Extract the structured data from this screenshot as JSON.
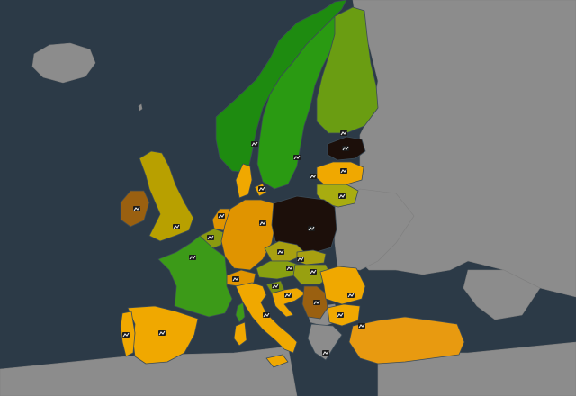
{
  "map": {
    "colors": {
      "sea": "#2c3a47",
      "non_data_land": "#8c8c8c",
      "border": "#3b4b57"
    },
    "countries": [
      {
        "name": "norway",
        "color": "#1e8b10"
      },
      {
        "name": "sweden",
        "color": "#2a9a12"
      },
      {
        "name": "finland",
        "color": "#6a9d12"
      },
      {
        "name": "estonia",
        "color": "#1c0f0a"
      },
      {
        "name": "latvia",
        "color": "#f0a800"
      },
      {
        "name": "lithuania",
        "color": "#a8ac10"
      },
      {
        "name": "denmark",
        "color": "#f0a800"
      },
      {
        "name": "ireland",
        "color": "#9a6010"
      },
      {
        "name": "united-kingdom",
        "color": "#b8a000"
      },
      {
        "name": "netherlands",
        "color": "#e09400"
      },
      {
        "name": "belgium",
        "color": "#8a9a10"
      },
      {
        "name": "germany",
        "color": "#e09400"
      },
      {
        "name": "poland",
        "color": "#1c0f0a"
      },
      {
        "name": "czechia",
        "color": "#a8a010"
      },
      {
        "name": "slovakia",
        "color": "#a8a010"
      },
      {
        "name": "austria",
        "color": "#88a010"
      },
      {
        "name": "hungary",
        "color": "#98a010"
      },
      {
        "name": "switzerland",
        "color": "#e09400"
      },
      {
        "name": "france",
        "color": "#3c9a18"
      },
      {
        "name": "corsica",
        "color": "#3c9a18"
      },
      {
        "name": "spain",
        "color": "#f0a800"
      },
      {
        "name": "portugal",
        "color": "#f0a800"
      },
      {
        "name": "italy",
        "color": "#f0a800"
      },
      {
        "name": "sicily",
        "color": "#f0a800"
      },
      {
        "name": "sardinia",
        "color": "#f0a800"
      },
      {
        "name": "slovenia",
        "color": "#7a9010"
      },
      {
        "name": "croatia",
        "color": "#f0a800"
      },
      {
        "name": "serbia",
        "color": "#9a6010"
      },
      {
        "name": "romania",
        "color": "#f0a800"
      },
      {
        "name": "bulgaria",
        "color": "#f0a800"
      },
      {
        "name": "greece",
        "color": "#8c8c8c"
      },
      {
        "name": "turkey",
        "color": "#e89a10"
      }
    ],
    "markers": [
      {
        "id": "oslo"
      },
      {
        "id": "stockholm"
      },
      {
        "id": "helsinki"
      },
      {
        "id": "tallinn"
      },
      {
        "id": "riga"
      },
      {
        "id": "vilnius"
      },
      {
        "id": "copenhagen"
      },
      {
        "id": "berlin"
      },
      {
        "id": "warsaw"
      },
      {
        "id": "prague"
      },
      {
        "id": "vienna"
      },
      {
        "id": "budapest"
      },
      {
        "id": "bratislava"
      },
      {
        "id": "paris"
      },
      {
        "id": "amsterdam"
      },
      {
        "id": "brussels"
      },
      {
        "id": "london"
      },
      {
        "id": "dublin"
      },
      {
        "id": "madrid"
      },
      {
        "id": "lisbon"
      },
      {
        "id": "rome"
      },
      {
        "id": "ljubljana"
      },
      {
        "id": "zagreb"
      },
      {
        "id": "belgrade"
      },
      {
        "id": "bucharest"
      },
      {
        "id": "sofia"
      },
      {
        "id": "athens"
      },
      {
        "id": "istanbul"
      },
      {
        "id": "bern"
      },
      {
        "id": "gotland"
      }
    ]
  }
}
